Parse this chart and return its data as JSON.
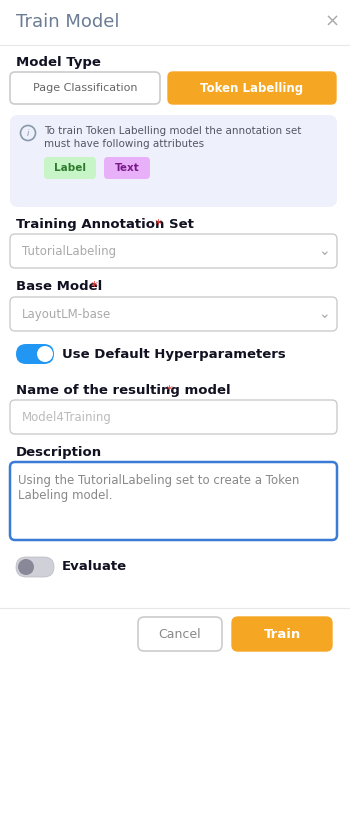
{
  "title": "Train Model",
  "close_x": "×",
  "bg_color": "#ffffff",
  "title_color": "#6b7c93",
  "title_fontsize": 14,
  "model_type_label": "Model Type",
  "btn_page_label": "Page Classification",
  "btn_token_label": "Token Labelling",
  "btn_page_bg": "#ffffff",
  "btn_page_border": "#cccccc",
  "btn_page_text_color": "#666666",
  "btn_token_bg": "#f5a623",
  "btn_token_text_color": "#ffffff",
  "info_box_bg": "#eef1fb",
  "info_text1": "To train Token Labelling model the annotation set",
  "info_text2": "must have following attributes",
  "info_text_color": "#555566",
  "label_chip_bg": "#c8f5c8",
  "label_chip_text": "Label",
  "label_chip_color": "#2d7a2d",
  "text_chip_bg": "#e8b0f8",
  "text_chip_text": "Text",
  "text_chip_color": "#7a1a8a",
  "training_label": "Training Annotation Set",
  "training_value": "TutorialLabeling",
  "dropdown_border": "#cccccc",
  "dropdown_text_color": "#aaaaaa",
  "base_model_label": "Base Model",
  "base_model_value": "LayoutLM-base",
  "toggle_on_bg": "#2196f3",
  "toggle_label": "Use Default Hyperparameters",
  "name_label": "Name of the resulting model",
  "name_value": "Model4Training",
  "name_border": "#cccccc",
  "desc_label": "Description",
  "desc_line1": "Using the TutorialLabeling set to create a Token",
  "desc_line2": "Labeling model.",
  "desc_border": "#3a7bd5",
  "desc_text_color": "#888888",
  "toggle2_label": "Evaluate",
  "cancel_label": "Cancel",
  "train_label": "Train",
  "cancel_bg": "#ffffff",
  "cancel_border": "#cccccc",
  "cancel_text_color": "#888888",
  "train_bg": "#f5a623",
  "train_text_color": "#ffffff",
  "required_star_color": "#e53935",
  "field_label_color": "#111122"
}
